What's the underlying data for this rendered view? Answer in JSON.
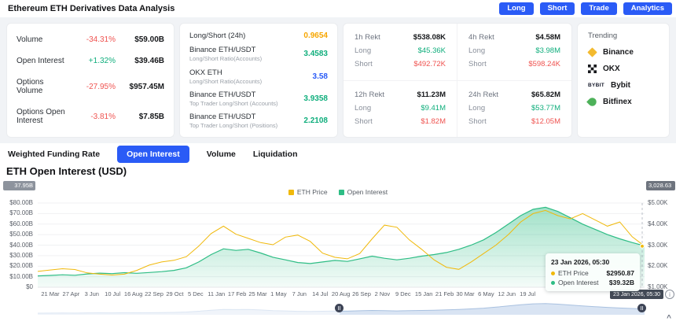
{
  "theme": {
    "accent": "#2A5BF6",
    "green": "#0FAE7C",
    "red": "#EF5350"
  },
  "header": {
    "title": "Ethereum ETH Derivatives Data Analysis",
    "buttons": [
      {
        "label": "Long"
      },
      {
        "label": "Short"
      },
      {
        "label": "Trade"
      },
      {
        "label": "Analytics"
      }
    ]
  },
  "stats": {
    "rows": [
      {
        "label": "Volume",
        "change": "-34.31%",
        "change_color": "#EF5350",
        "value": "$59.00B"
      },
      {
        "label": "Open Interest",
        "change": "+1.32%",
        "change_color": "#0FAE7C",
        "value": "$39.46B"
      },
      {
        "label": "Options Volume",
        "change": "-27.95%",
        "change_color": "#EF5350",
        "value": "$957.45M"
      },
      {
        "label": "Options Open Interest",
        "change": "-3.81%",
        "change_color": "#EF5350",
        "value": "$7.85B"
      }
    ]
  },
  "ratios": {
    "rows": [
      {
        "label": "Long/Short (24h)",
        "sub": "",
        "value": "0.9654",
        "color": "#F7A600"
      },
      {
        "label": "Binance ETH/USDT",
        "sub": "Long/Short Ratio(Accounts)",
        "value": "3.4583",
        "color": "#0FAE7C"
      },
      {
        "label": "OKX ETH",
        "sub": "Long/Short Ratio(Accounts)",
        "value": "3.58",
        "color": "#2A5BF6"
      },
      {
        "label": "Binance ETH/USDT",
        "sub": "Top Trader Long/Short (Accounts)",
        "value": "3.9358",
        "color": "#0FAE7C"
      },
      {
        "label": "Binance ETH/USDT",
        "sub": "Top Trader Long/Short (Positions)",
        "value": "2.2108",
        "color": "#0FAE7C"
      }
    ]
  },
  "rekt": {
    "blocks": [
      {
        "title": "1h Rekt",
        "total": "$538.08K",
        "long_label": "Long",
        "long": "$45.36K",
        "short_label": "Short",
        "short": "$492.72K"
      },
      {
        "title": "4h Rekt",
        "total": "$4.58M",
        "long_label": "Long",
        "long": "$3.98M",
        "short_label": "Short",
        "short": "$598.24K"
      },
      {
        "title": "12h Rekt",
        "total": "$11.23M",
        "long_label": "Long",
        "long": "$9.41M",
        "short_label": "Short",
        "short": "$1.82M"
      },
      {
        "title": "24h Rekt",
        "total": "$65.82M",
        "long_label": "Long",
        "long": "$53.77M",
        "short_label": "Short",
        "short": "$12.05M"
      }
    ]
  },
  "trending": {
    "title": "Trending",
    "items": [
      {
        "name": "Binance",
        "icon": "binance-diamond-icon",
        "color": "#F3BA2F"
      },
      {
        "name": "OKX",
        "icon": "okx-grid-icon",
        "color": "#17181C"
      },
      {
        "name": "Bybit",
        "icon": "bybit-logo-icon",
        "color": "#15192A",
        "icon_text": "BYBIT"
      },
      {
        "name": "Bitfinex",
        "icon": "bitfinex-leaf-icon",
        "color": "#4DB159"
      }
    ]
  },
  "tabs": {
    "items": [
      {
        "label": "Weighted Funding Rate",
        "active": false
      },
      {
        "label": "Open Interest",
        "active": true
      },
      {
        "label": "Volume",
        "active": false
      },
      {
        "label": "Liquidation",
        "active": false
      }
    ]
  },
  "section_title": "ETH Open Interest (USD)",
  "chart_data": {
    "type": "area",
    "title": "ETH Open Interest (USD)",
    "legend": [
      {
        "label": "ETH Price",
        "color": "#F0B90B"
      },
      {
        "label": "Open Interest",
        "color": "#2EBD85"
      }
    ],
    "x_labels": [
      "21 Mar",
      "27 Apr",
      "3 Jun",
      "10 Jul",
      "16 Aug",
      "22 Sep",
      "29 Oct",
      "5 Dec",
      "11 Jan",
      "17 Feb",
      "25 Mar",
      "1 May",
      "7 Jun",
      "14 Jul",
      "20 Aug",
      "26 Sep",
      "2 Nov",
      "9 Dec",
      "15 Jan",
      "21 Feb",
      "30 Mar",
      "6 May",
      "12 Jun",
      "19 Jul"
    ],
    "y_left": {
      "labels": [
        "$80.00B",
        "$70.00B",
        "$60.00B",
        "$50.00B",
        "$40.00B",
        "$30.00B",
        "$20.00B",
        "$10.00B",
        "$0"
      ],
      "values": [
        80,
        70,
        60,
        50,
        40,
        30,
        20,
        10,
        0
      ],
      "lim": [
        0,
        80
      ],
      "unit": "B USD"
    },
    "y_right": {
      "labels": [
        "$5.00K",
        "$4.00K",
        "$3.00K",
        "$2.00K",
        "$1.00K"
      ],
      "values": [
        5000,
        4000,
        3000,
        2000,
        1000
      ],
      "lim": [
        1000,
        5000
      ],
      "unit": "USD"
    },
    "series": [
      {
        "name": "Open Interest",
        "axis": "left",
        "unit": "B",
        "color": "#2EBD85",
        "values": [
          10.8,
          11.2,
          11.8,
          11.4,
          12.6,
          13.4,
          12.9,
          13.8,
          13.2,
          14.0,
          14.8,
          16.0,
          18.5,
          24.0,
          31.0,
          36.5,
          35.0,
          36.0,
          32.5,
          28.5,
          26.0,
          23.5,
          22.5,
          24.0,
          25.5,
          24.5,
          27.0,
          29.5,
          27.5,
          26.0,
          27.5,
          29.5,
          31.0,
          33.0,
          36.0,
          40.0,
          45.0,
          52.0,
          60.0,
          68.0,
          74.0,
          76.0,
          72.0,
          66.0,
          60.0,
          55.0,
          50.0,
          46.0,
          42.5,
          39.32
        ]
      },
      {
        "name": "ETH Price",
        "axis": "right",
        "unit": "USD",
        "color": "#F0B90B",
        "values": [
          1750,
          1820,
          1880,
          1840,
          1680,
          1620,
          1580,
          1620,
          1800,
          2050,
          2200,
          2280,
          2450,
          2950,
          3550,
          3900,
          3520,
          3320,
          3120,
          3020,
          3380,
          3480,
          3180,
          2620,
          2420,
          2350,
          2600,
          3300,
          3950,
          3850,
          3250,
          2800,
          2300,
          1950,
          1850,
          2200,
          2600,
          3000,
          3500,
          4100,
          4500,
          4650,
          4400,
          4250,
          4500,
          4200,
          3900,
          4100,
          3400,
          2950.87
        ]
      }
    ]
  },
  "tooltip": {
    "title": "23 Jan 2026, 05:30",
    "rows": [
      {
        "label": "ETH Price",
        "value": "$2950.87",
        "color": "#F0B90B"
      },
      {
        "label": "Open Interest",
        "value": "$39.32B",
        "color": "#2EBD85"
      }
    ]
  },
  "badges": {
    "left_axis": "37.95B",
    "right_axis": "3,028.63",
    "date": "23 Jan 2026, 05:30"
  },
  "icons": {
    "info": "i",
    "collapse": "^"
  }
}
